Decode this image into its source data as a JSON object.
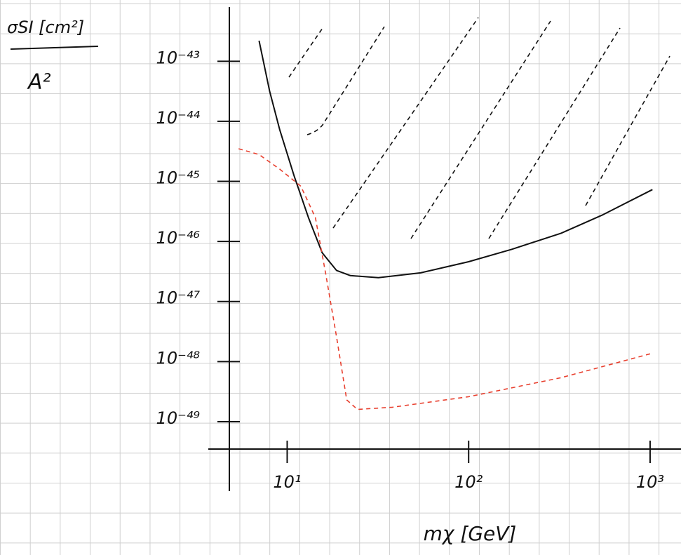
{
  "chart_data": {
    "type": "line",
    "ylabel": {
      "numerator": "σSI [cm²]",
      "denominator": "A²"
    },
    "xlabel": "mχ [GeV]",
    "xscale": "log",
    "yscale": "log",
    "xlim": [
      4.8,
      1480
    ],
    "ylim": [
      3.5e-50,
      8e-43
    ],
    "xticks": [
      {
        "value": 10,
        "label": "10¹"
      },
      {
        "value": 100,
        "label": "10²"
      },
      {
        "value": 1000,
        "label": "10³"
      }
    ],
    "yticks": [
      {
        "value": 1e-43,
        "label": "10⁻⁴³"
      },
      {
        "value": 1e-44,
        "label": "10⁻⁴⁴"
      },
      {
        "value": 1e-45,
        "label": "10⁻⁴⁵"
      },
      {
        "value": 1e-46,
        "label": "10⁻⁴⁶"
      },
      {
        "value": 1e-47,
        "label": "10⁻⁴⁷"
      },
      {
        "value": 1e-48,
        "label": "10⁻⁴⁸"
      },
      {
        "value": 1e-49,
        "label": "10⁻⁴⁹"
      }
    ],
    "series": [
      {
        "color": "#111111",
        "dashed": false,
        "x": [
          7.0,
          8.0,
          9.1,
          10.9,
          13.1,
          15.6,
          18.7,
          22.3,
          31.8,
          54.3,
          100,
          173,
          323,
          551,
          1030
        ],
        "values": [
          2.2e-43,
          3.2e-44,
          7.2e-45,
          1.25e-45,
          2.5e-46,
          6.5e-47,
          3.3e-47,
          2.7e-47,
          2.5e-47,
          3e-47,
          4.6e-47,
          7.4e-47,
          1.37e-46,
          2.8e-46,
          7.3e-46
        ]
      },
      {
        "color": "#e8402f",
        "dashed": true,
        "x": [
          5.4,
          7.0,
          9.1,
          11.9,
          14.3,
          16.3,
          18.7,
          21.3,
          24.4,
          38,
          100,
          323,
          1030
        ],
        "values": [
          3.5e-45,
          2.8e-45,
          1.6e-45,
          8.3e-46,
          2.5e-46,
          2.9e-47,
          2.6e-48,
          2.3e-49,
          1.6e-49,
          1.74e-49,
          2.6e-49,
          5.4e-49,
          1.38e-48
        ]
      }
    ]
  }
}
